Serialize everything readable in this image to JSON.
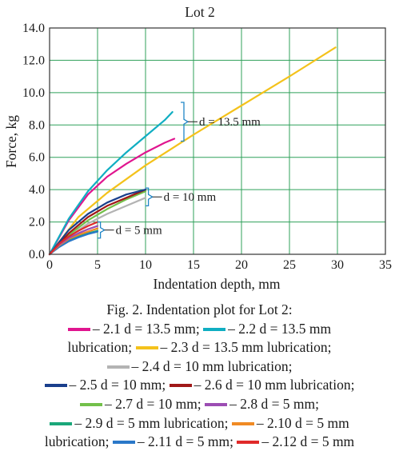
{
  "chart_data": {
    "type": "line",
    "title": "Lot 2",
    "xlabel": "Indentation depth, mm",
    "ylabel": "Force, kg",
    "xlim": [
      0,
      35
    ],
    "ylim": [
      0,
      14
    ],
    "x_ticks": [
      "0",
      "5",
      "10",
      "15",
      "20",
      "25",
      "30",
      "35"
    ],
    "y_ticks": [
      "0.0",
      "2.0",
      "4.0",
      "6.0",
      "8.0",
      "10.0",
      "12.0",
      "14.0"
    ],
    "grid": true,
    "grid_color": "#2fa05a",
    "series": [
      {
        "name": "2.1 d = 13.5 mm",
        "color": "#e0158f",
        "x": [
          0,
          2,
          4,
          6,
          8,
          10,
          12,
          13
        ],
        "y": [
          0,
          2.1,
          3.7,
          4.8,
          5.6,
          6.3,
          6.9,
          7.15
        ]
      },
      {
        "name": "2.2 d = 13.5 mm lubrication",
        "color": "#10aec2",
        "x": [
          0,
          2,
          4,
          6,
          8,
          10,
          12,
          12.8
        ],
        "y": [
          0,
          2.2,
          3.9,
          5.2,
          6.3,
          7.3,
          8.3,
          8.8
        ]
      },
      {
        "name": "2.3 d = 13.5 mm lubrication",
        "color": "#f4c21b",
        "x": [
          0,
          3,
          6,
          10,
          15,
          20,
          25,
          29.8
        ],
        "y": [
          0,
          2.3,
          3.8,
          5.5,
          7.4,
          9.2,
          11.0,
          12.8
        ]
      },
      {
        "name": "2.4 d = 10 mm lubrication",
        "color": "#b3b3b3",
        "x": [
          0,
          2,
          4,
          6,
          8,
          10
        ],
        "y": [
          0,
          1.1,
          1.9,
          2.5,
          3.0,
          3.5
        ]
      },
      {
        "name": "2.5 d = 10 mm",
        "color": "#1a3f8c",
        "x": [
          0,
          2,
          4,
          6,
          8,
          10
        ],
        "y": [
          0,
          1.5,
          2.5,
          3.2,
          3.7,
          4.0
        ]
      },
      {
        "name": "2.6 d = 10 mm lubrication",
        "color": "#a01818",
        "x": [
          0,
          2,
          4,
          6,
          8,
          10
        ],
        "y": [
          0,
          1.3,
          2.3,
          3.0,
          3.5,
          4.0
        ]
      },
      {
        "name": "2.7 d = 10 mm",
        "color": "#73c04a",
        "x": [
          0,
          2,
          4,
          6,
          8,
          10
        ],
        "y": [
          0,
          1.2,
          2.1,
          2.8,
          3.4,
          3.9
        ]
      },
      {
        "name": "2.8 d = 5 mm",
        "color": "#9c4db3",
        "x": [
          0,
          1,
          2,
          3,
          4,
          5
        ],
        "y": [
          0,
          0.6,
          1.0,
          1.3,
          1.55,
          1.75
        ]
      },
      {
        "name": "2.9 d = 5 mm lubrication",
        "color": "#1aa77a",
        "x": [
          0,
          1,
          2,
          3,
          4,
          5
        ],
        "y": [
          0,
          0.5,
          0.85,
          1.1,
          1.3,
          1.45
        ]
      },
      {
        "name": "2.10 d = 5 mm lubrication",
        "color": "#f08a24",
        "x": [
          0,
          1,
          2,
          3,
          4,
          5
        ],
        "y": [
          0,
          0.55,
          0.95,
          1.2,
          1.4,
          1.6
        ]
      },
      {
        "name": "2.11 d = 5 mm",
        "color": "#2a78c8",
        "x": [
          0,
          1,
          2,
          3,
          4,
          5
        ],
        "y": [
          0,
          0.45,
          0.8,
          1.05,
          1.25,
          1.4
        ]
      },
      {
        "name": "2.12 d = 5 mm",
        "color": "#e02a2a",
        "x": [
          0,
          1,
          2,
          3,
          4,
          5
        ],
        "y": [
          0,
          0.65,
          1.1,
          1.45,
          1.75,
          2.0
        ]
      }
    ],
    "annotations": [
      {
        "text": "d = 13.5 mm",
        "span_x": 14,
        "y_range": [
          7.0,
          9.4
        ]
      },
      {
        "text": "d = 10 mm",
        "span_x": 10.3,
        "y_range": [
          3.0,
          4.1
        ]
      },
      {
        "text": "d = 5 mm",
        "span_x": 5.3,
        "y_range": [
          1.0,
          2.0
        ]
      }
    ]
  },
  "caption": {
    "title": "Fig. 2. Indentation plot for Lot 2:",
    "lines": [
      [
        {
          "series": 0,
          "text": "– 2.1 d = 13.5 mm;"
        },
        {
          "series": 1,
          "text": "– 2.2 d = 13.5 mm"
        }
      ],
      [
        {
          "lead": "lubrication;",
          "series": 2,
          "text": "– 2.3 d = 13.5 mm lubrication;"
        }
      ],
      [
        {
          "series": 3,
          "text": "– 2.4 d = 10 mm lubrication;"
        }
      ],
      [
        {
          "series": 4,
          "text": "– 2.5 d = 10 mm;"
        },
        {
          "series": 5,
          "text": "– 2.6 d = 10 mm lubrication;"
        }
      ],
      [
        {
          "series": 6,
          "text": "– 2.7 d = 10 mm;"
        },
        {
          "series": 7,
          "text": "– 2.8 d = 5 mm;"
        }
      ],
      [
        {
          "series": 8,
          "text": "– 2.9 d = 5 mm lubrication;"
        },
        {
          "series": 9,
          "text": "– 2.10 d = 5 mm"
        }
      ],
      [
        {
          "lead": "lubrication;",
          "series": 10,
          "text": "– 2.11 d = 5 mm;"
        },
        {
          "series": 11,
          "text": "– 2.12 d = 5 mm"
        }
      ]
    ]
  }
}
